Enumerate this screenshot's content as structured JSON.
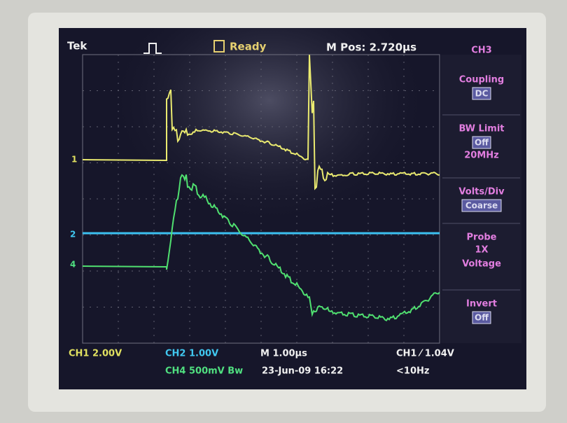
{
  "header": {
    "brand": "Tek",
    "status": "Ready",
    "position": "M Pos: 2.720µs"
  },
  "menu": {
    "title": "CH3",
    "items": [
      {
        "label": "Coupling",
        "value": "DC"
      },
      {
        "label": "BW Limit",
        "value": "Off",
        "note": "20MHz"
      },
      {
        "label": "Volts/Div",
        "value": "Coarse"
      },
      {
        "label": "Probe",
        "value": "1X",
        "note": "Voltage"
      },
      {
        "label": "Invert",
        "value": "Off"
      }
    ]
  },
  "markers": [
    "1",
    "2",
    "4"
  ],
  "footer": {
    "ch1": "CH1 2.00V",
    "ch2": "CH2 1.00V",
    "time": "M 1.00µs",
    "trigger": "CH1 ⁄ 1.04V",
    "ch4": "CH4 500mV Bw",
    "date": "23-Jun-09 16:22",
    "freq": "<10Hz"
  }
}
